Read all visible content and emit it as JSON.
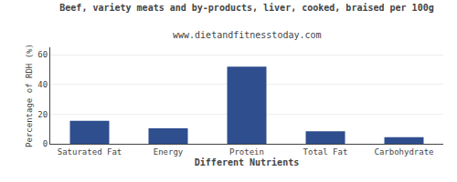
{
  "chart_data": {
    "type": "bar",
    "title": "Beef, variety meats and by-products, liver, cooked, braised per 100g",
    "subtitle": "www.dietandfitnesstoday.com",
    "xlabel": "Different Nutrients",
    "ylabel": "Percentage of RDH (%)",
    "categories": [
      "Saturated Fat",
      "Energy",
      "Protein",
      "Total Fat",
      "Carbohydrate"
    ],
    "values": [
      15.5,
      10.5,
      52,
      8.5,
      4.5
    ],
    "color": "#2e4e8e",
    "ylim": [
      0,
      65
    ],
    "yticks": [
      0,
      20,
      40,
      60
    ],
    "grid": true
  }
}
